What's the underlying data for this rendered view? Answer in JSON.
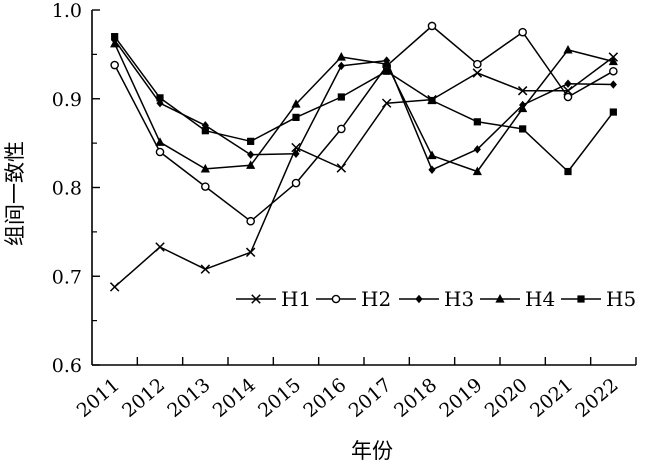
{
  "chart_data": {
    "type": "line",
    "title": "",
    "xlabel": "年份",
    "ylabel": "组间一致性",
    "categories": [
      "2011",
      "2012",
      "2013",
      "2014",
      "2015",
      "2016",
      "2017",
      "2018",
      "2019",
      "2020",
      "2021",
      "2022"
    ],
    "ylim": [
      0.6,
      1.0
    ],
    "yticks": [
      "0.6",
      "0.7",
      "0.8",
      "0.9",
      "1.0"
    ],
    "grid": false,
    "legend_position": "bottom-right",
    "series": [
      {
        "name": "H1",
        "marker": "x",
        "values": [
          0.688,
          0.733,
          0.708,
          0.727,
          0.845,
          0.822,
          0.895,
          0.899,
          0.929,
          0.909,
          0.909,
          0.947
        ]
      },
      {
        "name": "H2",
        "marker": "open-circle",
        "values": [
          0.938,
          0.84,
          0.801,
          0.762,
          0.805,
          0.866,
          0.937,
          0.982,
          0.939,
          0.975,
          0.902,
          0.931
        ]
      },
      {
        "name": "H3",
        "marker": "diamond",
        "values": [
          0.966,
          0.895,
          0.87,
          0.837,
          0.838,
          0.937,
          0.943,
          0.82,
          0.843,
          0.893,
          0.917,
          0.916
        ]
      },
      {
        "name": "H4",
        "marker": "triangle",
        "values": [
          0.962,
          0.851,
          0.821,
          0.825,
          0.894,
          0.947,
          0.939,
          0.836,
          0.818,
          0.889,
          0.955,
          0.942
        ]
      },
      {
        "name": "H5",
        "marker": "square",
        "values": [
          0.97,
          0.901,
          0.864,
          0.852,
          0.879,
          0.902,
          0.931,
          0.898,
          0.874,
          0.866,
          0.818,
          0.885
        ]
      }
    ]
  }
}
